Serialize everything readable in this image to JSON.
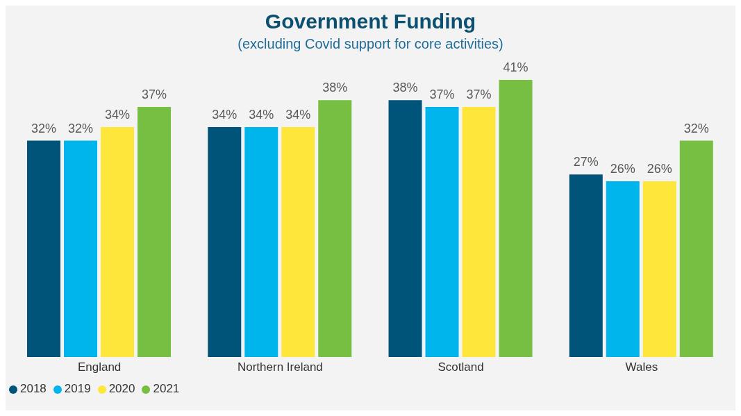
{
  "chart_data": {
    "type": "bar",
    "title": "Government Funding",
    "subtitle": "(excluding Covid support for core activities)",
    "categories": [
      "England",
      "Northern Ireland",
      "Scotland",
      "Wales"
    ],
    "series": [
      {
        "name": "2018",
        "color": "#00547a",
        "values": [
          32,
          34,
          38,
          27
        ],
        "value_labels": [
          "32%",
          "34%",
          "38%",
          "27%"
        ]
      },
      {
        "name": "2019",
        "color": "#00b5ec",
        "values": [
          32,
          34,
          37,
          26
        ],
        "value_labels": [
          "32%",
          "34%",
          "37%",
          "26%"
        ]
      },
      {
        "name": "2020",
        "color": "#ffe63b",
        "values": [
          34,
          34,
          37,
          26
        ],
        "value_labels": [
          "34%",
          "34%",
          "37%",
          "26%"
        ]
      },
      {
        "name": "2021",
        "color": "#76bf43",
        "values": [
          37,
          38,
          41,
          32
        ],
        "value_labels": [
          "37%",
          "38%",
          "41%",
          "32%"
        ]
      }
    ],
    "legend": "bottom left"
  }
}
